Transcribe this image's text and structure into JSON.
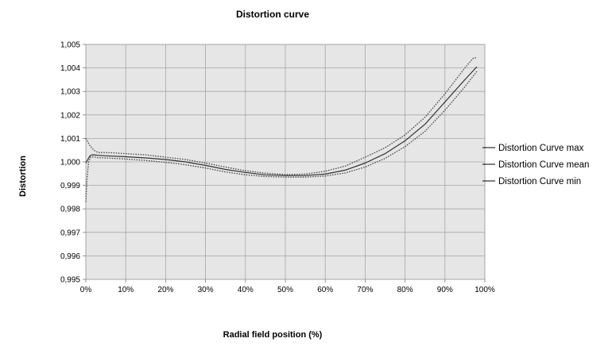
{
  "chart_data": {
    "type": "line",
    "title": "Distortion curve",
    "xlabel": "Radial field position (%)",
    "ylabel": "Distortion",
    "xlim": [
      0,
      100
    ],
    "ylim": [
      0.995,
      1.005
    ],
    "xticks": [
      0,
      10,
      20,
      30,
      40,
      50,
      60,
      70,
      80,
      90,
      100
    ],
    "xtick_labels": [
      "0%",
      "10%",
      "20%",
      "30%",
      "40%",
      "50%",
      "60%",
      "70%",
      "80%",
      "90%",
      "100%"
    ],
    "yticks": [
      0.995,
      0.996,
      0.997,
      0.998,
      0.999,
      1.0,
      1.001,
      1.002,
      1.003,
      1.004,
      1.005
    ],
    "ytick_labels": [
      "0,995",
      "0,996",
      "0,997",
      "0,998",
      "0,999",
      "1,000",
      "1,001",
      "1,002",
      "1,003",
      "1,004",
      "1,005"
    ],
    "grid": true,
    "legend_position": "right",
    "plot_background": "#e6e6e6",
    "grid_color": "#a6a6a6",
    "series": [
      {
        "name": "Distortion Curve max",
        "style": "dotted",
        "color": "#404040",
        "x": [
          0,
          1,
          2,
          3,
          5,
          10,
          15,
          20,
          25,
          30,
          35,
          40,
          45,
          50,
          55,
          60,
          65,
          70,
          75,
          80,
          85,
          90,
          95,
          97,
          98
        ],
        "y": [
          1.001,
          1.0007,
          1.0005,
          1.0004,
          1.0004,
          1.00035,
          1.0003,
          1.0002,
          1.0001,
          0.99995,
          0.99978,
          0.99962,
          0.99952,
          0.99946,
          0.99948,
          0.9996,
          0.99982,
          1.0002,
          1.0006,
          1.00115,
          1.0019,
          1.0029,
          1.004,
          1.0044,
          1.00445
        ]
      },
      {
        "name": "Distortion Curve mean",
        "style": "solid",
        "color": "#303030",
        "x": [
          0,
          0.5,
          1,
          1.5,
          2,
          3,
          5,
          10,
          15,
          20,
          25,
          30,
          35,
          40,
          45,
          50,
          55,
          60,
          65,
          70,
          75,
          80,
          85,
          90,
          95,
          98
        ],
        "y": [
          0.99995,
          1.0001,
          1.00025,
          1.0003,
          1.0003,
          1.00028,
          1.00026,
          1.00022,
          1.00017,
          1.0001,
          1.0,
          0.99985,
          0.99968,
          0.99955,
          0.99945,
          0.99942,
          0.99942,
          0.99948,
          0.99965,
          0.99995,
          1.00035,
          1.0009,
          1.0016,
          1.00255,
          1.0035,
          1.00405
        ]
      },
      {
        "name": "Distortion Curve min",
        "style": "dotted",
        "color": "#404040",
        "x": [
          0,
          0.3,
          0.7,
          1.2,
          2,
          3,
          5,
          10,
          15,
          20,
          25,
          30,
          35,
          40,
          45,
          50,
          55,
          60,
          65,
          70,
          75,
          80,
          85,
          90,
          95,
          98
        ],
        "y": [
          0.9983,
          0.9993,
          1.0,
          1.0002,
          1.00022,
          1.00018,
          1.00017,
          1.00012,
          1.00006,
          0.99998,
          0.99988,
          0.99974,
          0.99957,
          0.99945,
          0.99938,
          0.99935,
          0.99935,
          0.9994,
          0.99953,
          0.99978,
          1.00015,
          1.00065,
          1.0013,
          1.0022,
          1.0032,
          1.00385
        ]
      }
    ]
  }
}
